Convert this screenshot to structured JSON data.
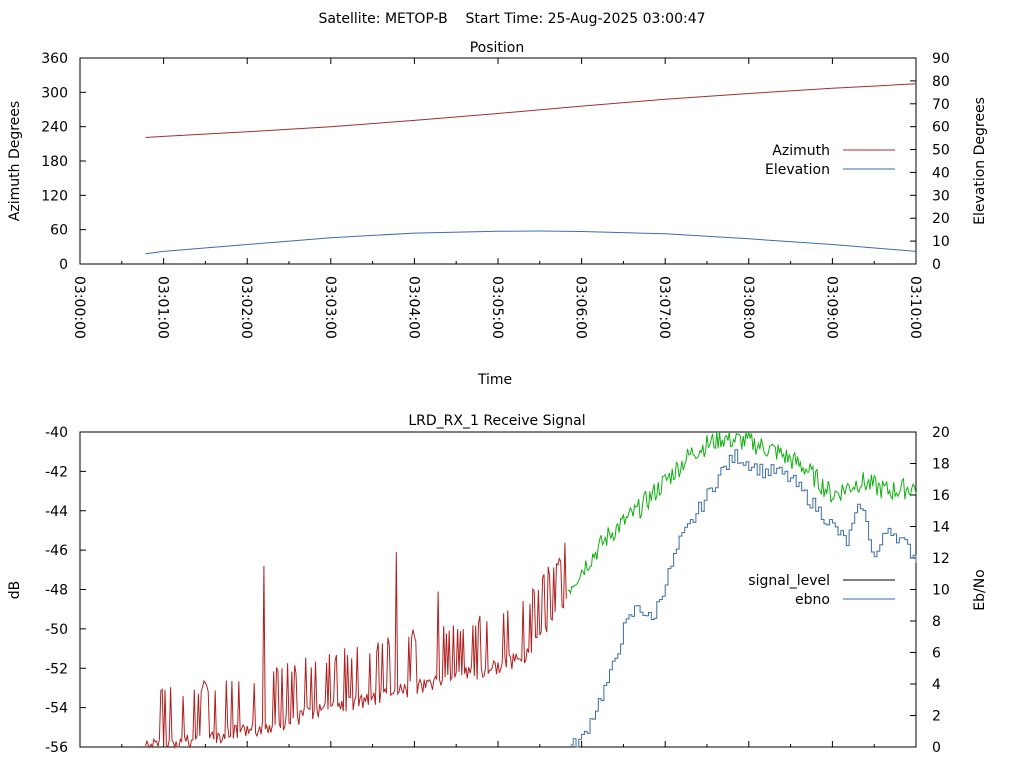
{
  "figure": {
    "suptitle": "Satellite: METOP-B    Start Time: 25-Aug-2025 03:00:47"
  },
  "colors": {
    "axis": "#000000",
    "azimuth": "#a03030",
    "elevation": "#3a6ea5",
    "signal_red": "#b02020",
    "signal_green": "#10b010",
    "ebno": "#3a6ea5"
  },
  "chart_data": [
    {
      "type": "line",
      "title": "Position",
      "xlabel": "Time",
      "ylabel": "Azimuth Degrees",
      "y2label": "Elevation Degrees",
      "x_ticks": [
        "03:00:00",
        "03:01:00",
        "03:02:00",
        "03:03:00",
        "03:04:00",
        "03:05:00",
        "03:06:00",
        "03:07:00",
        "03:08:00",
        "03:09:00",
        "03:10:00"
      ],
      "y_ticks": [
        "0",
        "60",
        "120",
        "180",
        "240",
        "300",
        "360"
      ],
      "y2_ticks": [
        "0",
        "10",
        "20",
        "30",
        "40",
        "50",
        "60",
        "70",
        "80",
        "90"
      ],
      "xlim": [
        0,
        600
      ],
      "ylim": [
        0,
        360
      ],
      "y2lim": [
        0,
        90
      ],
      "legend_position": "right-center",
      "series": [
        {
          "name": "Azimuth",
          "axis": "y",
          "color": "#a03030",
          "x": [
            47,
            60,
            120,
            180,
            240,
            300,
            360,
            420,
            480,
            540,
            600
          ],
          "y": [
            221,
            223,
            231,
            240,
            251,
            263,
            276,
            288,
            298,
            307,
            315
          ]
        },
        {
          "name": "Elevation",
          "axis": "y2",
          "color": "#3a6ea5",
          "x": [
            47,
            60,
            120,
            180,
            240,
            300,
            330,
            360,
            420,
            480,
            540,
            600
          ],
          "y": [
            4.5,
            5.5,
            8.5,
            11.5,
            13.5,
            14.3,
            14.4,
            14.2,
            13.2,
            11,
            8.5,
            5.5
          ]
        }
      ]
    },
    {
      "type": "line",
      "title": "LRD_RX_1 Receive Signal",
      "ylabel": "dB",
      "y2label": "Eb/No",
      "y_ticks": [
        "-56",
        "-54",
        "-52",
        "-50",
        "-48",
        "-46",
        "-44",
        "-42",
        "-40"
      ],
      "y2_ticks": [
        "0",
        "2",
        "4",
        "6",
        "8",
        "10",
        "12",
        "14",
        "16",
        "18",
        "20"
      ],
      "xlim": [
        0,
        600
      ],
      "ylim": [
        -56,
        -40
      ],
      "y2lim": [
        0,
        20
      ],
      "legend_position": "right-center",
      "series": [
        {
          "name": "signal_level",
          "axis": "y",
          "color": "#000000",
          "x": [
            47,
            60,
            80,
            100,
            120,
            140,
            160,
            180,
            200,
            220,
            240,
            260,
            280,
            300,
            320,
            340,
            360,
            380,
            400,
            420,
            440,
            460,
            480,
            500,
            520,
            540,
            560,
            580,
            600
          ],
          "y": [
            -55.5,
            -55.6,
            -55.3,
            -55.0,
            -54.8,
            -54.5,
            -54.0,
            -53.6,
            -53.3,
            -53.0,
            -52.6,
            -52.2,
            -51.9,
            -51.5,
            -51.0,
            -49.0,
            -47.0,
            -45.2,
            -44.0,
            -42.5,
            -41.0,
            -40.3,
            -40.5,
            -41.0,
            -41.8,
            -43.2,
            -42.5,
            -43.0,
            -42.8
          ]
        },
        {
          "name": "ebno",
          "axis": "y2",
          "color": "#3a6ea5",
          "x": [
            352,
            360,
            370,
            380,
            390,
            400,
            410,
            420,
            430,
            440,
            450,
            460,
            470,
            480,
            490,
            500,
            510,
            520,
            530,
            540,
            550,
            560,
            570,
            580,
            590,
            600
          ],
          "y": [
            0,
            0.5,
            2.5,
            4.5,
            7.5,
            9,
            8,
            10.5,
            13,
            14.5,
            16,
            17.5,
            18.5,
            18,
            17.5,
            17.5,
            17,
            16,
            15,
            14,
            13,
            15.5,
            12,
            14,
            13,
            12
          ]
        }
      ]
    }
  ]
}
